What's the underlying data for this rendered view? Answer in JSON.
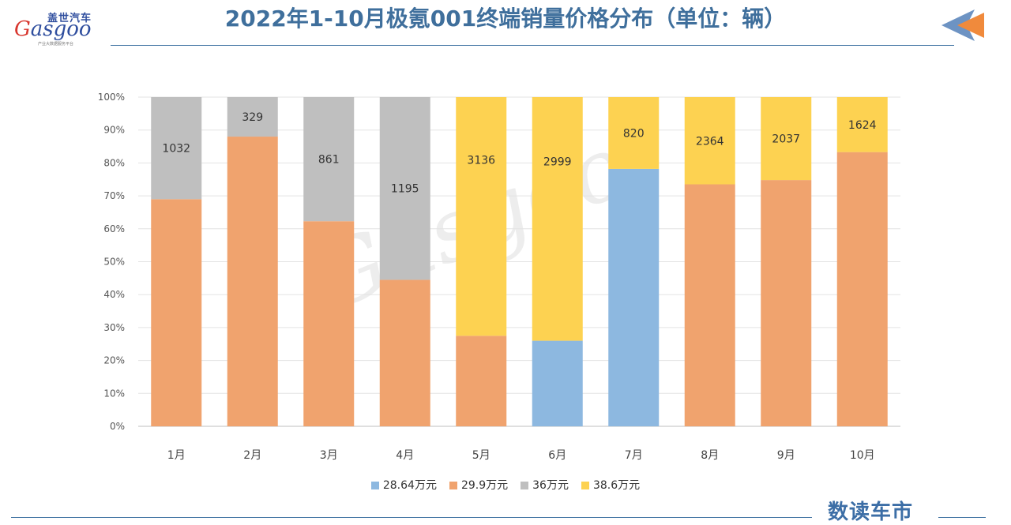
{
  "header": {
    "title": "2022年1-10月极氪001终端销量价格分布（单位：辆）",
    "logo_cn": "盖世汽车",
    "logo_en_initial": "G",
    "logo_en_rest": "asgoo",
    "logo_sub": "产业大数据服务平台"
  },
  "footer": {
    "brand": "数读车市"
  },
  "chart_data": {
    "type": "bar",
    "stacked": true,
    "normalized": true,
    "categories": [
      "1月",
      "2月",
      "3月",
      "4月",
      "5月",
      "6月",
      "7月",
      "8月",
      "9月",
      "10月"
    ],
    "series": [
      {
        "name": "28.64万元",
        "color": "#8db8e0",
        "percent": [
          0,
          0,
          0,
          0,
          0,
          26,
          78.2,
          0,
          0,
          0
        ]
      },
      {
        "name": "29.9万元",
        "color": "#f0a36e",
        "percent": [
          69,
          88,
          62.3,
          44.5,
          27.5,
          0,
          0,
          73.5,
          74.8,
          83.3
        ]
      },
      {
        "name": "36万元",
        "color": "#bfbfbf",
        "percent": [
          31,
          12,
          37.7,
          55.5,
          0,
          0,
          0,
          0,
          0,
          0
        ]
      },
      {
        "name": "38.6万元",
        "color": "#fdd251",
        "percent": [
          0,
          0,
          0,
          0,
          72.5,
          74,
          21.8,
          26.5,
          25.2,
          16.7
        ]
      }
    ],
    "data_labels": [
      {
        "category": "1月",
        "series": "36万元",
        "text": "1032"
      },
      {
        "category": "2月",
        "series": "36万元",
        "text": "329"
      },
      {
        "category": "3月",
        "series": "36万元",
        "text": "861"
      },
      {
        "category": "4月",
        "series": "36万元",
        "text": "1195"
      },
      {
        "category": "5月",
        "series": "38.6万元",
        "text": "3136"
      },
      {
        "category": "6月",
        "series": "38.6万元",
        "text": "2999"
      },
      {
        "category": "7月",
        "series": "38.6万元",
        "text": "820"
      },
      {
        "category": "8月",
        "series": "38.6万元",
        "text": "2364"
      },
      {
        "category": "9月",
        "series": "38.6万元",
        "text": "2037"
      },
      {
        "category": "10月",
        "series": "38.6万元",
        "text": "1624"
      }
    ],
    "y_ticks": [
      "0%",
      "10%",
      "20%",
      "30%",
      "40%",
      "50%",
      "60%",
      "70%",
      "80%",
      "90%",
      "100%"
    ],
    "ylim": [
      0,
      100
    ],
    "grid": true,
    "legend_position": "bottom"
  }
}
